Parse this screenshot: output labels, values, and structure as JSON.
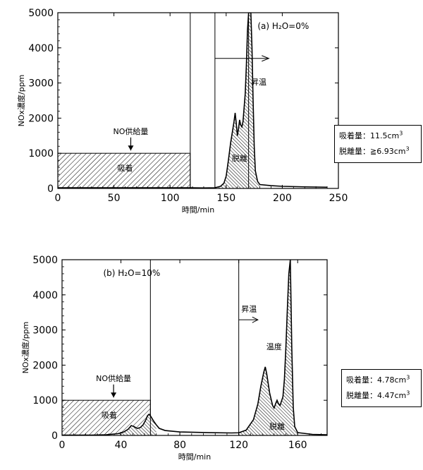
{
  "chart_data": [
    {
      "type": "area",
      "title": "(a) H₂O=0%",
      "xlabel": "時間/min",
      "ylabel": "NOx濃度/ppm",
      "xlim": [
        0,
        250
      ],
      "ylim": [
        0,
        5000
      ],
      "xticks": [
        0,
        50,
        100,
        150,
        200,
        250
      ],
      "yticks": [
        0,
        1000,
        2000,
        3000,
        4000,
        5000
      ],
      "vlines": [
        118,
        140,
        170
      ],
      "feed": {
        "x0": 0,
        "x1": 118,
        "value": 1000
      },
      "series": [
        {
          "values": [
            [
              0,
              20
            ],
            [
              50,
              20
            ],
            [
              100,
              20
            ],
            [
              118,
              20
            ],
            [
              130,
              15
            ],
            [
              140,
              20
            ],
            [
              145,
              60
            ],
            [
              148,
              150
            ],
            [
              150,
              350
            ],
            [
              152,
              800
            ],
            [
              154,
              1300
            ],
            [
              156,
              1700
            ],
            [
              157,
              1900
            ],
            [
              158,
              2150
            ],
            [
              159,
              1850
            ],
            [
              160,
              1500
            ],
            [
              161,
              1700
            ],
            [
              162,
              1950
            ],
            [
              163,
              1800
            ],
            [
              164,
              1750
            ],
            [
              165,
              1900
            ],
            [
              166,
              2300
            ],
            [
              167,
              2700
            ],
            [
              168,
              3500
            ],
            [
              169,
              4500
            ],
            [
              170,
              5000
            ],
            [
              172,
              5000
            ],
            [
              173,
              4000
            ],
            [
              174,
              2500
            ],
            [
              175,
              1200
            ],
            [
              176,
              500
            ],
            [
              178,
              200
            ],
            [
              180,
              110
            ],
            [
              190,
              80
            ],
            [
              200,
              60
            ],
            [
              220,
              45
            ],
            [
              240,
              35
            ]
          ]
        }
      ],
      "annotations": {
        "feed_label": "NO供給量",
        "adsorb_label": "吸着",
        "desorb_label": "脱離",
        "heat_label": "昇温"
      }
    },
    {
      "type": "area",
      "title": "(b) H₂O=10%",
      "xlabel": "時間/min",
      "ylabel": "NOx濃度/ppm",
      "xlim": [
        0,
        180
      ],
      "ylim": [
        0,
        5000
      ],
      "xticks": [
        0,
        40,
        80,
        120,
        160
      ],
      "yticks": [
        0,
        1000,
        2000,
        3000,
        4000,
        5000
      ],
      "vlines": [
        60,
        120
      ],
      "feed": {
        "x0": 0,
        "x1": 60,
        "value": 1000
      },
      "series": [
        {
          "values": [
            [
              0,
              10
            ],
            [
              20,
              10
            ],
            [
              30,
              20
            ],
            [
              38,
              50
            ],
            [
              42,
              100
            ],
            [
              45,
              180
            ],
            [
              47,
              280
            ],
            [
              49,
              250
            ],
            [
              51,
              200
            ],
            [
              53,
              220
            ],
            [
              55,
              300
            ],
            [
              57,
              450
            ],
            [
              58,
              560
            ],
            [
              59,
              600
            ],
            [
              60,
              560
            ],
            [
              62,
              420
            ],
            [
              64,
              300
            ],
            [
              66,
              200
            ],
            [
              70,
              140
            ],
            [
              80,
              100
            ],
            [
              100,
              80
            ],
            [
              115,
              70
            ],
            [
              120,
              75
            ],
            [
              125,
              150
            ],
            [
              130,
              450
            ],
            [
              133,
              900
            ],
            [
              135,
              1400
            ],
            [
              137,
              1800
            ],
            [
              138,
              1950
            ],
            [
              139,
              1750
            ],
            [
              141,
              1200
            ],
            [
              143,
              850
            ],
            [
              144,
              780
            ],
            [
              145,
              900
            ],
            [
              146,
              1000
            ],
            [
              147,
              900
            ],
            [
              148,
              850
            ],
            [
              150,
              1100
            ],
            [
              151,
              1600
            ],
            [
              152,
              2500
            ],
            [
              153,
              3600
            ],
            [
              154,
              4600
            ],
            [
              155,
              5000
            ],
            [
              156,
              2500
            ],
            [
              157,
              800
            ],
            [
              158,
              250
            ],
            [
              160,
              80
            ],
            [
              170,
              30
            ],
            [
              180,
              20
            ]
          ]
        }
      ],
      "annotations": {
        "feed_label": "NO供給量",
        "adsorb_label": "吸着",
        "desorb_label": "脱離",
        "heat_label": "昇温",
        "temp_label": "温度"
      }
    }
  ],
  "info_a": {
    "adsorb_label": "吸着量：",
    "adsorb_value": "11.5cm",
    "desorb_label": "脱離量：",
    "desorb_value": "≧6.93cm",
    "exp": "3"
  },
  "info_b": {
    "adsorb_label": "吸着量：",
    "adsorb_value": "4.78cm",
    "desorb_label": "脱離量：",
    "desorb_value": "4.47cm",
    "exp": "3"
  }
}
